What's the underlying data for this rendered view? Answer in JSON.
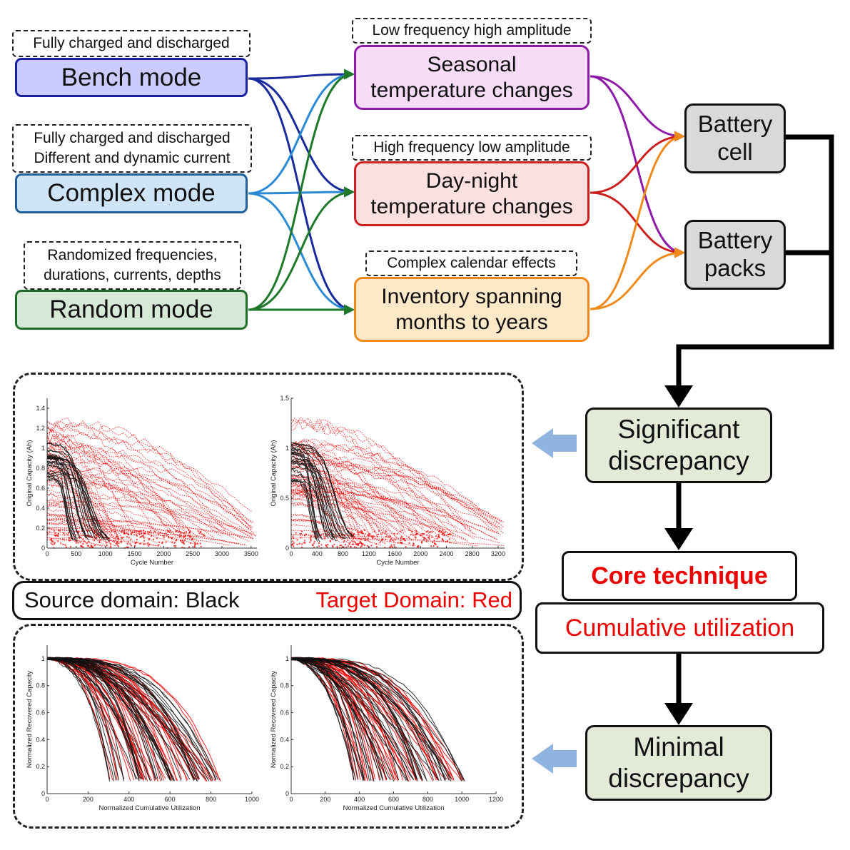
{
  "modes": [
    {
      "label": "Bench mode",
      "note": [
        "Fully charged and discharged"
      ],
      "fill": "#cccbff",
      "border": "#1c1f9e"
    },
    {
      "label": "Complex mode",
      "note": [
        "Fully charged and discharged",
        "Different and dynamic current"
      ],
      "fill": "#cfe5f7",
      "border": "#1e5f9a"
    },
    {
      "label": "Random mode",
      "note": [
        "Randomized frequencies,",
        "durations, currents, depths"
      ],
      "fill": "#d5e9d6",
      "border": "#1e6b2a"
    }
  ],
  "effects": [
    {
      "lines": [
        "Seasonal",
        "temperature changes"
      ],
      "note": "Low frequency high amplitude",
      "fill": "#f7dcf7",
      "border": "#8e1aa8"
    },
    {
      "lines": [
        "Day-night",
        "temperature changes"
      ],
      "note": "High frequency low amplitude",
      "fill": "#fde0e0",
      "border": "#cc1f1f"
    },
    {
      "lines": [
        "Inventory spanning",
        "months to years"
      ],
      "note": "Complex calendar effects",
      "fill": "#fde9c8",
      "border": "#ef8a1a"
    }
  ],
  "battery": [
    {
      "lines": [
        "Battery",
        "cell"
      ]
    },
    {
      "lines": [
        "Battery",
        "packs"
      ]
    }
  ],
  "flow": {
    "significant": [
      "Significant",
      "discrepancy"
    ],
    "core": "Core technique",
    "cumulative": "Cumulative utilization",
    "minimal": [
      "Minimal",
      "discrepancy"
    ]
  },
  "legend": {
    "source": "Source domain: Black",
    "target": "Target Domain: Red"
  },
  "colors": {
    "bench_arrow": "#1a2a9a",
    "complex_arrow": "#2a8ad4",
    "random_arrow": "#1e7a2a",
    "seasonal_arrow": "#8e1aa8",
    "daynight_arrow": "#cc1f1f",
    "inventory_arrow": "#ef8a1a",
    "side_arrow": "#8fb4df",
    "source": "#111111",
    "target": "#ee0000"
  },
  "chart_data": [
    {
      "type": "scatter",
      "panel": "top",
      "xlabel": "Cycle Number",
      "ylabel": "Original Capacity (Ah)",
      "xlim": [
        0,
        3600
      ],
      "ylim": [
        0,
        1.5
      ],
      "xticks": [
        0,
        500,
        1000,
        1500,
        2000,
        2500,
        3000,
        3500
      ],
      "yticks": [
        0,
        0.2,
        0.4,
        0.6,
        0.8,
        1,
        1.2,
        1.4
      ],
      "series": [
        {
          "name": "Source domain"
        },
        {
          "name": "Target Domain"
        }
      ]
    },
    {
      "type": "scatter",
      "panel": "top",
      "xlabel": "Cycle Number",
      "ylabel": "Original Capacity (Ah)",
      "xlim": [
        0,
        3300
      ],
      "ylim": [
        0,
        1.5
      ],
      "xticks": [
        0,
        400,
        800,
        1200,
        1600,
        2000,
        2400,
        2800,
        3200
      ],
      "yticks": [
        0,
        0.5,
        1,
        1.5
      ],
      "series": [
        {
          "name": "Source domain"
        },
        {
          "name": "Target Domain"
        }
      ]
    },
    {
      "type": "line",
      "panel": "bottom",
      "xlabel": "Normalized Cumulative Utilization",
      "ylabel": "Normalized Recovered Capacity",
      "xlim": [
        0,
        1000
      ],
      "ylim": [
        0,
        1.1
      ],
      "xticks": [
        0,
        200,
        400,
        600,
        800,
        1000
      ],
      "yticks": [
        0,
        0.2,
        0.4,
        0.6,
        0.8,
        1
      ],
      "series": [
        {
          "name": "Source domain"
        },
        {
          "name": "Target Domain"
        }
      ]
    },
    {
      "type": "line",
      "panel": "bottom",
      "xlabel": "Normalized Cumulative Utilization",
      "ylabel": "Normalized Recovered Capacity",
      "xlim": [
        0,
        1200
      ],
      "ylim": [
        0,
        1.1
      ],
      "xticks": [
        0,
        200,
        400,
        600,
        800,
        1000,
        1200
      ],
      "yticks": [
        0,
        0.2,
        0.4,
        0.6,
        0.8,
        1
      ],
      "series": [
        {
          "name": "Source domain"
        },
        {
          "name": "Target Domain"
        }
      ]
    }
  ]
}
